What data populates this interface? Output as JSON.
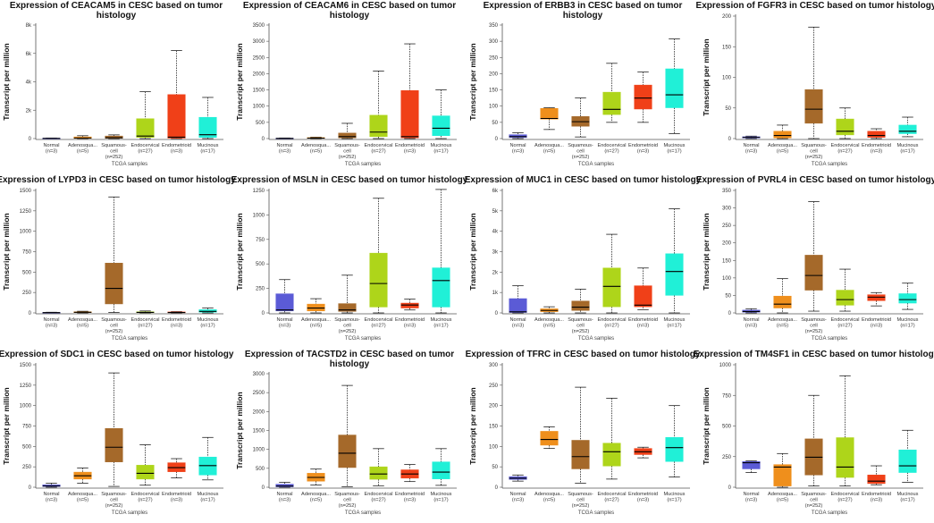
{
  "figure": {
    "ylabel": "Transcript per million",
    "xlabel": "TCGA samples",
    "categories": [
      "Normal\n(n=3)",
      "Adenosqua...\n(n=5)",
      "Squamous-\ncell\n(n=252)",
      "Endocervical\n(n=27)",
      "Endometrioid\n(n=3)",
      "Mucinous\n(n=17)"
    ],
    "category_colors": [
      "#5b5bd6",
      "#ef8f1c",
      "#a5692a",
      "#aed51a",
      "#f04018",
      "#20f0d7"
    ]
  },
  "chart_data": [
    {
      "type": "boxplot",
      "title": "Expression of CEACAM5 in CESC based on tumor histology",
      "title_lines": [
        "Expression of CEACAM5 in CESC based on tumor",
        "histology"
      ],
      "ylim": [
        0,
        8000
      ],
      "yticks": [
        0,
        2000,
        4000,
        6000,
        8000
      ],
      "ytick_labels": [
        "0",
        "2k",
        "4k",
        "6k",
        "8k"
      ],
      "boxes": [
        {
          "min": 0,
          "q1": 5,
          "median": 15,
          "q3": 30,
          "max": 40
        },
        {
          "min": 0,
          "q1": 10,
          "median": 40,
          "q3": 120,
          "max": 200
        },
        {
          "min": 0,
          "q1": 20,
          "median": 60,
          "q3": 180,
          "max": 260
        },
        {
          "min": 0,
          "q1": 80,
          "median": 180,
          "q3": 1400,
          "max": 3300
        },
        {
          "min": 0,
          "q1": 30,
          "median": 100,
          "q3": 3100,
          "max": 6200
        },
        {
          "min": 0,
          "q1": 80,
          "median": 270,
          "q3": 1500,
          "max": 2900
        }
      ]
    },
    {
      "type": "boxplot",
      "title": "Expression of CEACAM6 in CESC based on tumor histology",
      "title_lines": [
        "Expression of CEACAM6 in CESC based on tumor",
        "histology"
      ],
      "ylim": [
        0,
        3500
      ],
      "yticks": [
        0,
        500,
        1000,
        1500,
        2000,
        2500,
        3000,
        3500
      ],
      "ytick_labels": [
        "0",
        "500",
        "1000",
        "1500",
        "2000",
        "2500",
        "3000",
        "3500"
      ],
      "boxes": [
        {
          "min": 0,
          "q1": 2,
          "median": 6,
          "q3": 12,
          "max": 18
        },
        {
          "min": 0,
          "q1": 5,
          "median": 14,
          "q3": 30,
          "max": 45
        },
        {
          "min": 0,
          "q1": 20,
          "median": 60,
          "q3": 170,
          "max": 470
        },
        {
          "min": 0,
          "q1": 60,
          "median": 200,
          "q3": 720,
          "max": 2080
        },
        {
          "min": 0,
          "q1": 20,
          "median": 60,
          "q3": 1480,
          "max": 2920
        },
        {
          "min": 0,
          "q1": 90,
          "median": 320,
          "q3": 700,
          "max": 1500
        }
      ]
    },
    {
      "type": "boxplot",
      "title": "Expression of ERBB3 in CESC based on tumor histology",
      "title_lines": [
        "Expression of ERBB3 in CESC based on tumor",
        "histology"
      ],
      "ylim": [
        0,
        350
      ],
      "yticks": [
        0,
        50,
        100,
        150,
        200,
        250,
        300,
        350
      ],
      "ytick_labels": [
        "0",
        "50",
        "100",
        "150",
        "200",
        "250",
        "300",
        "350"
      ],
      "boxes": [
        {
          "min": 0,
          "q1": 3,
          "median": 6,
          "q3": 12,
          "max": 18
        },
        {
          "min": 28,
          "q1": 60,
          "median": 62,
          "q3": 93,
          "max": 95
        },
        {
          "min": 5,
          "q1": 38,
          "median": 52,
          "q3": 68,
          "max": 125
        },
        {
          "min": 50,
          "q1": 74,
          "median": 90,
          "q3": 143,
          "max": 232
        },
        {
          "min": 50,
          "q1": 91,
          "median": 125,
          "q3": 165,
          "max": 205
        },
        {
          "min": 15,
          "q1": 95,
          "median": 135,
          "q3": 215,
          "max": 307
        }
      ]
    },
    {
      "type": "boxplot",
      "title": "Expression of FGFR3 in CESC based on tumor histology",
      "title_lines": [
        "Expression of FGFR3 in CESC based on tumor histology"
      ],
      "ylim": [
        0,
        200
      ],
      "yticks": [
        0,
        50,
        100,
        150,
        200
      ],
      "ytick_labels": [
        "0",
        "50",
        "100",
        "150",
        "200"
      ],
      "boxes": [
        {
          "min": 0,
          "q1": 1,
          "median": 2,
          "q3": 3,
          "max": 4
        },
        {
          "min": 0,
          "q1": 1,
          "median": 5,
          "q3": 12,
          "max": 22
        },
        {
          "min": 0,
          "q1": 25,
          "median": 48,
          "q3": 80,
          "max": 182
        },
        {
          "min": 0,
          "q1": 6,
          "median": 12,
          "q3": 32,
          "max": 50
        },
        {
          "min": 0,
          "q1": 2,
          "median": 5,
          "q3": 12,
          "max": 16
        },
        {
          "min": 3,
          "q1": 8,
          "median": 12,
          "q3": 22,
          "max": 35
        }
      ]
    },
    {
      "type": "boxplot",
      "title": "Expression of LYPD3 in CESC based on tumor histology",
      "title_lines": [
        "Expression of LYPD3 in CESC based on tumor histology"
      ],
      "ylim": [
        0,
        1500
      ],
      "yticks": [
        0,
        250,
        500,
        750,
        1000,
        1250,
        1500
      ],
      "ytick_labels": [
        "0",
        "250",
        "500",
        "750",
        "1000",
        "1250",
        "1500"
      ],
      "boxes": [
        {
          "min": 0,
          "q1": 1,
          "median": 3,
          "q3": 6,
          "max": 8
        },
        {
          "min": 0,
          "q1": 3,
          "median": 8,
          "q3": 14,
          "max": 20
        },
        {
          "min": 5,
          "q1": 110,
          "median": 300,
          "q3": 610,
          "max": 1420
        },
        {
          "min": 0,
          "q1": 2,
          "median": 6,
          "q3": 14,
          "max": 24
        },
        {
          "min": 0,
          "q1": 2,
          "median": 5,
          "q3": 12,
          "max": 16
        },
        {
          "min": 0,
          "q1": 8,
          "median": 18,
          "q3": 40,
          "max": 60
        }
      ]
    },
    {
      "type": "boxplot",
      "title": "Expression of MSLN in CESC based on tumor histology",
      "title_lines": [
        "Expression of MSLN in CESC based on tumor histology"
      ],
      "ylim": [
        0,
        1250
      ],
      "yticks": [
        0,
        250,
        500,
        750,
        1000,
        1250
      ],
      "ytick_labels": [
        "0",
        "250",
        "500",
        "750",
        "1000",
        "1250"
      ],
      "boxes": [
        {
          "min": 0,
          "q1": 20,
          "median": 30,
          "q3": 195,
          "max": 340
        },
        {
          "min": 0,
          "q1": 20,
          "median": 50,
          "q3": 90,
          "max": 145
        },
        {
          "min": 0,
          "q1": 15,
          "median": 30,
          "q3": 95,
          "max": 385
        },
        {
          "min": 0,
          "q1": 60,
          "median": 300,
          "q3": 610,
          "max": 1170
        },
        {
          "min": 30,
          "q1": 50,
          "median": 80,
          "q3": 100,
          "max": 140
        },
        {
          "min": 0,
          "q1": 60,
          "median": 330,
          "q3": 460,
          "max": 1260
        }
      ]
    },
    {
      "type": "boxplot",
      "title": "Expression of MUC1 in CESC based on tumor histology",
      "title_lines": [
        "Expression of MUC1 in CESC based on tumor histology"
      ],
      "ylim": [
        0,
        6000
      ],
      "yticks": [
        0,
        1000,
        2000,
        3000,
        4000,
        5000,
        6000
      ],
      "ytick_labels": [
        "0",
        "1k",
        "2k",
        "3k",
        "4k",
        "5k",
        "6k"
      ],
      "boxes": [
        {
          "min": 0,
          "q1": 20,
          "median": 50,
          "q3": 700,
          "max": 1330
        },
        {
          "min": 0,
          "q1": 60,
          "median": 120,
          "q3": 200,
          "max": 300
        },
        {
          "min": 0,
          "q1": 120,
          "median": 280,
          "q3": 580,
          "max": 1160
        },
        {
          "min": 0,
          "q1": 300,
          "median": 1300,
          "q3": 2200,
          "max": 3850
        },
        {
          "min": 160,
          "q1": 300,
          "median": 380,
          "q3": 1330,
          "max": 2200
        },
        {
          "min": 0,
          "q1": 860,
          "median": 2030,
          "q3": 2900,
          "max": 5100
        }
      ]
    },
    {
      "type": "boxplot",
      "title": "Expression of PVRL4 in CESC based on tumor histology",
      "title_lines": [
        "Expression of PVRL4 in CESC based on tumor histology"
      ],
      "ylim": [
        0,
        350
      ],
      "yticks": [
        0,
        50,
        100,
        150,
        200,
        250,
        300,
        350
      ],
      "ytick_labels": [
        "0",
        "50",
        "100",
        "150",
        "200",
        "250",
        "300",
        "350"
      ],
      "boxes": [
        {
          "min": 0,
          "q1": 2,
          "median": 4,
          "q3": 8,
          "max": 12
        },
        {
          "min": 0,
          "q1": 14,
          "median": 25,
          "q3": 48,
          "max": 98
        },
        {
          "min": 5,
          "q1": 65,
          "median": 107,
          "q3": 165,
          "max": 318
        },
        {
          "min": 5,
          "q1": 22,
          "median": 38,
          "q3": 65,
          "max": 125
        },
        {
          "min": 20,
          "q1": 35,
          "median": 45,
          "q3": 52,
          "max": 58
        },
        {
          "min": 10,
          "q1": 28,
          "median": 38,
          "q3": 55,
          "max": 85
        }
      ]
    },
    {
      "type": "boxplot",
      "title": "Expression of SDC1 in CESC based on tumor histology",
      "title_lines": [
        "Expression of SDC1 in CESC based on tumor histology"
      ],
      "ylim": [
        0,
        1500
      ],
      "yticks": [
        0,
        250,
        500,
        750,
        1000,
        1250,
        1500
      ],
      "ytick_labels": [
        "0",
        "250",
        "500",
        "750",
        "1000",
        "1250",
        "1500"
      ],
      "boxes": [
        {
          "min": 0,
          "q1": 8,
          "median": 15,
          "q3": 30,
          "max": 50
        },
        {
          "min": 50,
          "q1": 100,
          "median": 140,
          "q3": 185,
          "max": 235
        },
        {
          "min": 10,
          "q1": 310,
          "median": 490,
          "q3": 720,
          "max": 1400
        },
        {
          "min": 25,
          "q1": 100,
          "median": 170,
          "q3": 270,
          "max": 520
        },
        {
          "min": 115,
          "q1": 190,
          "median": 240,
          "q3": 300,
          "max": 350
        },
        {
          "min": 90,
          "q1": 150,
          "median": 265,
          "q3": 370,
          "max": 610
        }
      ]
    },
    {
      "type": "boxplot",
      "title": "Expression of TACSTD2 in CESC based on tumor histology",
      "title_lines": [
        "Expression of TACSTD2 in CESC based on tumor",
        "histology"
      ],
      "ylim": [
        0,
        3000
      ],
      "yticks": [
        0,
        500,
        1000,
        1500,
        2000,
        2500,
        3000
      ],
      "ytick_labels": [
        "0",
        "500",
        "1000",
        "1500",
        "2000",
        "2500",
        "3000"
      ],
      "boxes": [
        {
          "min": 0,
          "q1": 10,
          "median": 30,
          "q3": 80,
          "max": 130
        },
        {
          "min": 60,
          "q1": 160,
          "median": 260,
          "q3": 370,
          "max": 480
        },
        {
          "min": 10,
          "q1": 520,
          "median": 900,
          "q3": 1380,
          "max": 2690
        },
        {
          "min": 40,
          "q1": 210,
          "median": 350,
          "q3": 540,
          "max": 1020
        },
        {
          "min": 150,
          "q1": 240,
          "median": 350,
          "q3": 460,
          "max": 600
        },
        {
          "min": 50,
          "q1": 220,
          "median": 400,
          "q3": 670,
          "max": 1020
        }
      ]
    },
    {
      "type": "boxplot",
      "title": "Expression of TFRC in CESC based on tumor histology",
      "title_lines": [
        "Expression of TFRC in CESC based on tumor histology"
      ],
      "ylim": [
        0,
        300
      ],
      "yticks": [
        0,
        50,
        100,
        150,
        200,
        250,
        300
      ],
      "ytick_labels": [
        "0",
        "50",
        "100",
        "150",
        "200",
        "250",
        "300"
      ],
      "boxes": [
        {
          "min": 15,
          "q1": 19,
          "median": 22,
          "q3": 26,
          "max": 30
        },
        {
          "min": 95,
          "q1": 103,
          "median": 117,
          "q3": 137,
          "max": 148
        },
        {
          "min": 10,
          "q1": 45,
          "median": 75,
          "q3": 115,
          "max": 245
        },
        {
          "min": 20,
          "q1": 52,
          "median": 87,
          "q3": 108,
          "max": 218
        },
        {
          "min": 72,
          "q1": 80,
          "median": 87,
          "q3": 95,
          "max": 98
        },
        {
          "min": 25,
          "q1": 63,
          "median": 97,
          "q3": 122,
          "max": 200
        }
      ]
    },
    {
      "type": "boxplot",
      "title": "Expression of TM4SF1 in CESC based on tumor histology",
      "title_lines": [
        "Expression of TM4SF1 in CESC based on tumor histology"
      ],
      "ylim": [
        0,
        1000
      ],
      "yticks": [
        0,
        250,
        500,
        750,
        1000
      ],
      "ytick_labels": [
        "0",
        "250",
        "500",
        "750",
        "1000"
      ],
      "boxes": [
        {
          "min": 120,
          "q1": 150,
          "median": 200,
          "q3": 210,
          "max": 215
        },
        {
          "min": 0,
          "q1": 10,
          "median": 165,
          "q3": 185,
          "max": 275
        },
        {
          "min": 10,
          "q1": 100,
          "median": 245,
          "q3": 395,
          "max": 750
        },
        {
          "min": 10,
          "q1": 80,
          "median": 165,
          "q3": 405,
          "max": 910
        },
        {
          "min": 20,
          "q1": 30,
          "median": 50,
          "q3": 100,
          "max": 175
        },
        {
          "min": 40,
          "q1": 120,
          "median": 175,
          "q3": 305,
          "max": 465
        }
      ]
    }
  ]
}
